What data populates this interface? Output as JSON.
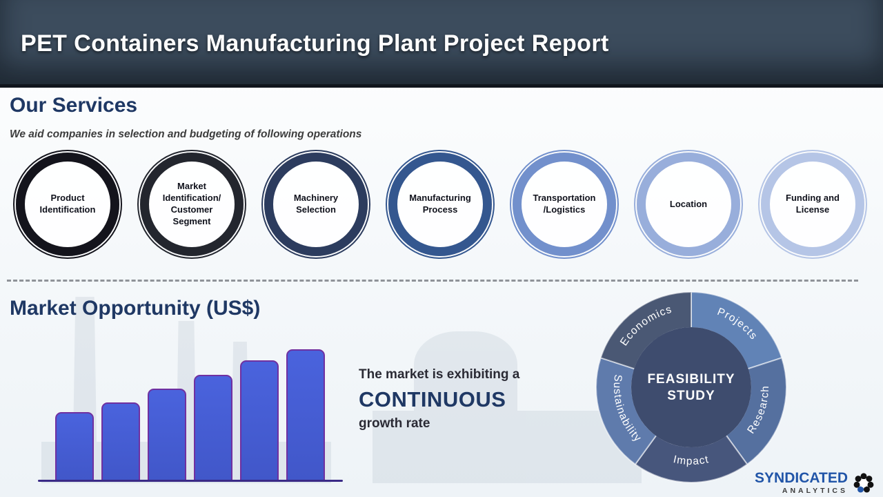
{
  "header": {
    "title": "PET Containers Manufacturing Plant Project Report"
  },
  "services": {
    "heading": "Our Services",
    "subtitle": "We aid companies in selection and budgeting of following operations",
    "items": [
      {
        "label": "Product Identification",
        "ring_color": "#14141c"
      },
      {
        "label": "Market Identification/ Customer Segment",
        "ring_color": "#23262e"
      },
      {
        "label": "Machinery Selection",
        "ring_color": "#2c3c5e"
      },
      {
        "label": "Manufacturing Process",
        "ring_color": "#34578f"
      },
      {
        "label": "Transportation /Logistics",
        "ring_color": "#7290cc"
      },
      {
        "label": "Location",
        "ring_color": "#98aedb"
      },
      {
        "label": "Funding and License",
        "ring_color": "#b5c5e6"
      }
    ]
  },
  "market": {
    "heading": "Market Opportunity (US$)",
    "caption_line1": "The market is exhibiting a",
    "caption_line2": "CONTINUOUS",
    "caption_line3": "growth rate"
  },
  "chart_data": {
    "type": "bar",
    "title": "Market Opportunity (US$)",
    "values": [
      100,
      114,
      134,
      154,
      175,
      191
    ],
    "value_note": "relative bar heights, no axis or data labels shown in image",
    "bar_fill": "#4a63dd",
    "bar_border": "#7030a0",
    "baseline_color": "#3a2a86",
    "xlabel": "",
    "ylabel": ""
  },
  "feasibility": {
    "center_line1": "FEASIBILITY",
    "center_line2": "STUDY",
    "center_color": "#3e4c6e",
    "segments": [
      {
        "label": "Projects",
        "color": "#6183b6"
      },
      {
        "label": "Research",
        "color": "#55709f"
      },
      {
        "label": "Impact",
        "color": "#47567c"
      },
      {
        "label": "Sustainability",
        "color": "#5f7bac"
      },
      {
        "label": "Economics",
        "color": "#4a5874"
      }
    ]
  },
  "footer": {
    "brand_line1": "SYNDICATED",
    "brand_line2": "ANALYTICS"
  }
}
